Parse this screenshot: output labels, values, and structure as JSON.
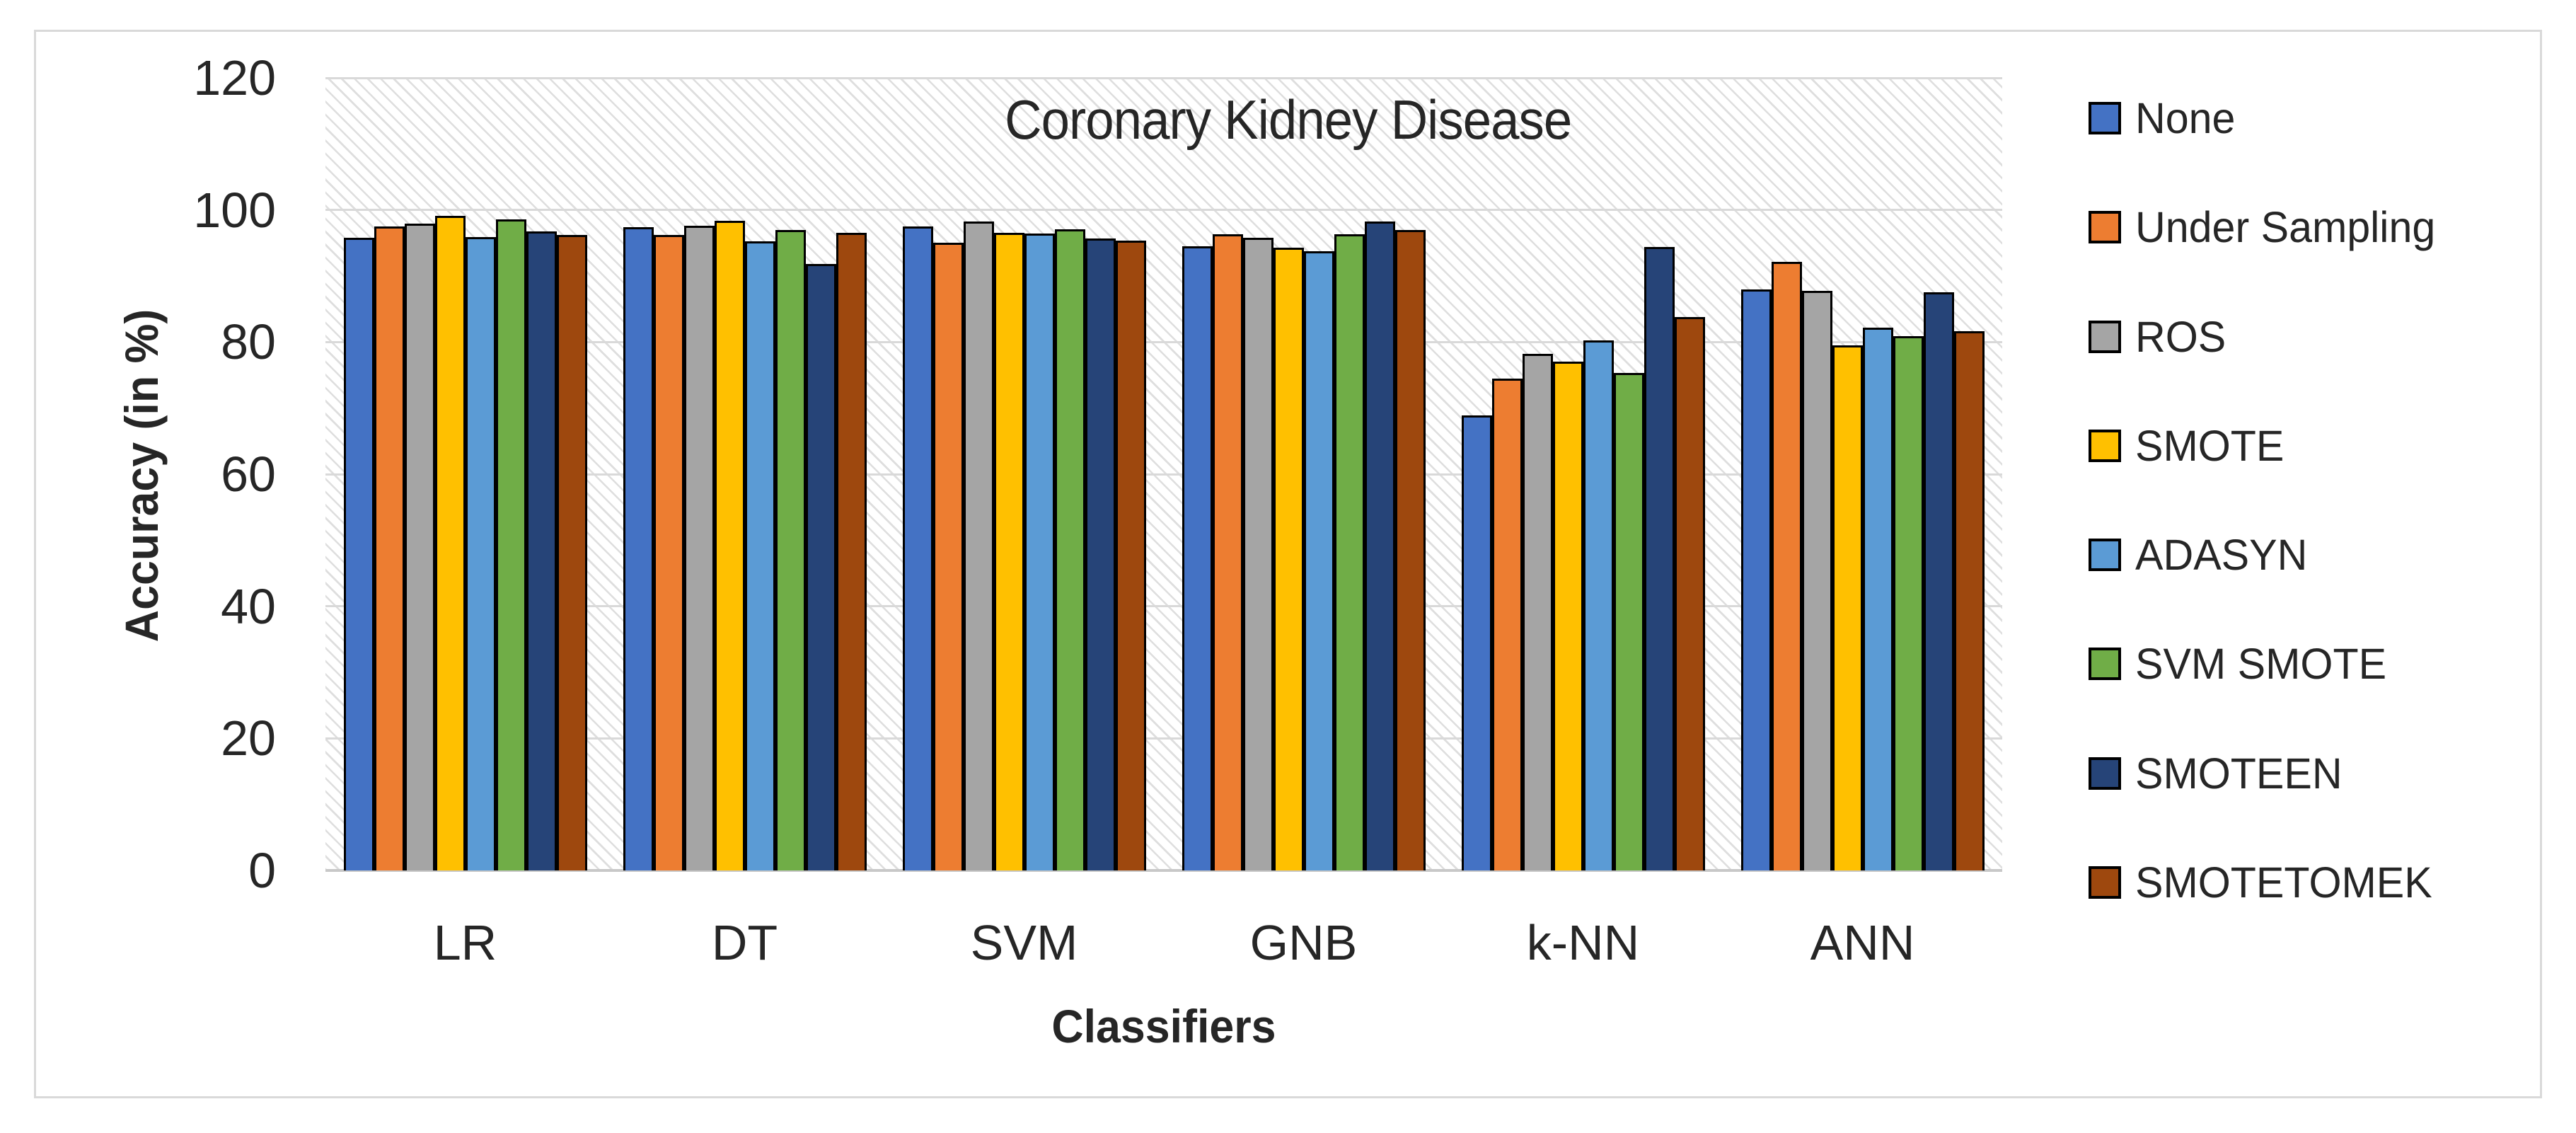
{
  "figure": {
    "background": "#FFFFFF",
    "border_color": "#D9D9D9"
  },
  "chart_data": {
    "type": "bar",
    "title": "Coronary Kidney Disease",
    "xlabel": "Classifiers",
    "ylabel": "Accuracy (in %)",
    "ylim": [
      0,
      120
    ],
    "yticks": [
      0,
      20,
      40,
      60,
      80,
      100,
      120
    ],
    "grid": true,
    "plot_background": "diagonal-hatch",
    "legend_position": "right",
    "categories": [
      "LR",
      "DT",
      "SVM",
      "GNB",
      "k-NN",
      "ANN"
    ],
    "series": [
      {
        "name": "None",
        "color": "#4472C4",
        "values": [
          95.8,
          97.4,
          97.5,
          94.5,
          68.9,
          88.0
        ]
      },
      {
        "name": "Under Sampling",
        "color": "#ED7D31",
        "values": [
          97.5,
          96.2,
          95.0,
          96.3,
          74.5,
          92.1
        ]
      },
      {
        "name": "ROS",
        "color": "#A5A5A5",
        "values": [
          97.9,
          97.6,
          98.3,
          95.8,
          78.2,
          87.8
        ]
      },
      {
        "name": "SMOTE",
        "color": "#FFC000",
        "values": [
          99.1,
          98.4,
          96.5,
          94.3,
          77.0,
          79.5
        ]
      },
      {
        "name": "ADASYN",
        "color": "#5B9BD5",
        "values": [
          95.9,
          95.2,
          96.4,
          93.8,
          80.2,
          82.2
        ]
      },
      {
        "name": "SVM SMOTE",
        "color": "#70AD47",
        "values": [
          98.6,
          97.0,
          97.1,
          96.3,
          75.3,
          80.9
        ]
      },
      {
        "name": "SMOTEEN",
        "color": "#264478",
        "values": [
          96.7,
          91.8,
          95.7,
          98.2,
          94.4,
          87.5
        ]
      },
      {
        "name": "SMOTETOMEK",
        "color": "#9E480E",
        "values": [
          96.2,
          96.5,
          95.4,
          97.0,
          83.8,
          81.6
        ]
      }
    ]
  },
  "style": {
    "gridline_color": "#D9D9D9",
    "baseline_color": "#C8C8C8",
    "bar_outline_color": "#000000",
    "text_color": "#262626"
  }
}
